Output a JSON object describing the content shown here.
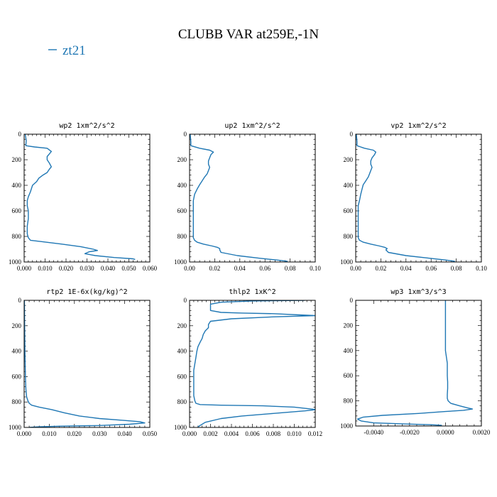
{
  "title": "CLUBB VAR at259E,-1N",
  "legend": {
    "label": "zt21",
    "color": "#1f77b4"
  },
  "chart_data": [
    {
      "type": "line",
      "title": "wp2  1xm^2/s^2",
      "xlim": [
        0,
        0.06
      ],
      "ylim": [
        1000,
        0
      ],
      "xticks": [
        0,
        0.01,
        0.02,
        0.03,
        0.04,
        0.05,
        0.06
      ],
      "xtick_labels": [
        "0.000",
        "0.010",
        "0.020",
        "0.030",
        "0.040",
        "0.050",
        "0.060"
      ],
      "yticks": [
        0,
        200,
        400,
        600,
        800,
        1000
      ],
      "ytick_labels": [
        "0",
        "200",
        "400",
        "600",
        "800",
        "1000"
      ],
      "series": [
        {
          "x": [
            0.0005,
            0.001,
            0.0008,
            0.005,
            0.011,
            0.013,
            0.012,
            0.011,
            0.011,
            0.012,
            0.013,
            0.012,
            0.011,
            0.009,
            0.007,
            0.006,
            0.004,
            0.003,
            0.002,
            0.0015,
            0.0015,
            0.002,
            0.002,
            0.0015,
            0.0015,
            0.002,
            0.003,
            0.008,
            0.018,
            0.027,
            0.033,
            0.035,
            0.031,
            0.029,
            0.034,
            0.043,
            0.052,
            0.053
          ],
          "y": [
            0,
            50,
            90,
            100,
            110,
            135,
            155,
            175,
            200,
            225,
            255,
            275,
            300,
            320,
            345,
            370,
            400,
            450,
            490,
            520,
            560,
            600,
            660,
            720,
            780,
            810,
            830,
            840,
            860,
            880,
            900,
            910,
            920,
            935,
            950,
            965,
            975,
            980
          ]
        }
      ]
    },
    {
      "type": "line",
      "title": "up2  1xm^2/s^2",
      "xlim": [
        0,
        0.1
      ],
      "ylim": [
        1000,
        0
      ],
      "xticks": [
        0,
        0.02,
        0.04,
        0.06,
        0.08,
        0.1
      ],
      "xtick_labels": [
        "0.00",
        "0.02",
        "0.04",
        "0.06",
        "0.08",
        "0.10"
      ],
      "yticks": [
        0,
        200,
        400,
        600,
        800,
        1000
      ],
      "ytick_labels": [
        "0",
        "200",
        "400",
        "600",
        "800",
        "1000"
      ],
      "series": [
        {
          "x": [
            0.0005,
            0.001,
            0.001,
            0.008,
            0.016,
            0.019,
            0.017,
            0.016,
            0.015,
            0.015,
            0.016,
            0.015,
            0.014,
            0.012,
            0.01,
            0.008,
            0.006,
            0.004,
            0.003,
            0.003,
            0.003,
            0.003,
            0.003,
            0.003,
            0.003,
            0.004,
            0.006,
            0.011,
            0.018,
            0.022,
            0.024,
            0.024,
            0.025,
            0.038,
            0.055,
            0.07,
            0.078
          ],
          "y": [
            0,
            60,
            90,
            110,
            125,
            140,
            160,
            185,
            210,
            235,
            260,
            285,
            310,
            335,
            365,
            395,
            430,
            470,
            520,
            560,
            610,
            660,
            720,
            780,
            810,
            830,
            845,
            860,
            875,
            885,
            895,
            905,
            925,
            950,
            970,
            985,
            995
          ]
        }
      ]
    },
    {
      "type": "line",
      "title": "vp2  1xm^2/s^2",
      "xlim": [
        0,
        0.1
      ],
      "ylim": [
        1000,
        0
      ],
      "xticks": [
        0,
        0.02,
        0.04,
        0.06,
        0.08,
        0.1
      ],
      "xtick_labels": [
        "0.00",
        "0.02",
        "0.04",
        "0.06",
        "0.08",
        "0.10"
      ],
      "yticks": [
        0,
        200,
        400,
        600,
        800,
        1000
      ],
      "ytick_labels": [
        "0",
        "200",
        "400",
        "600",
        "800",
        "1000"
      ],
      "series": [
        {
          "x": [
            0.0005,
            0.001,
            0.001,
            0.007,
            0.014,
            0.016,
            0.015,
            0.013,
            0.012,
            0.012,
            0.013,
            0.012,
            0.011,
            0.01,
            0.008,
            0.006,
            0.005,
            0.004,
            0.003,
            0.002,
            0.002,
            0.002,
            0.002,
            0.002,
            0.002,
            0.003,
            0.006,
            0.012,
            0.019,
            0.023,
            0.025,
            0.024,
            0.026,
            0.04,
            0.058,
            0.072,
            0.079
          ],
          "y": [
            0,
            60,
            90,
            110,
            125,
            140,
            160,
            185,
            210,
            235,
            260,
            285,
            310,
            335,
            365,
            395,
            430,
            470,
            520,
            560,
            610,
            660,
            720,
            780,
            810,
            830,
            845,
            860,
            875,
            885,
            895,
            905,
            925,
            950,
            970,
            985,
            995
          ]
        }
      ]
    },
    {
      "type": "line",
      "title": "rtp2  1E-6x(kg/kg)^2",
      "xlim": [
        0,
        0.05
      ],
      "ylim": [
        1000,
        0
      ],
      "xticks": [
        0,
        0.01,
        0.02,
        0.03,
        0.04,
        0.05
      ],
      "xtick_labels": [
        "0.000",
        "0.010",
        "0.020",
        "0.030",
        "0.040",
        "0.050"
      ],
      "yticks": [
        0,
        200,
        400,
        600,
        800,
        1000
      ],
      "ytick_labels": [
        "0",
        "200",
        "400",
        "600",
        "800",
        "1000"
      ],
      "series": [
        {
          "x": [
            0.0001,
            0.0002,
            0.0003,
            0.0005,
            0.0007,
            0.001,
            0.0015,
            0.002,
            0.003,
            0.006,
            0.011,
            0.016,
            0.022,
            0.03,
            0.04,
            0.046,
            0.048,
            0.042,
            0.03,
            0.015,
            0.006,
            0.002
          ],
          "y": [
            0,
            200,
            400,
            600,
            700,
            760,
            790,
            810,
            825,
            840,
            860,
            885,
            910,
            930,
            945,
            955,
            965,
            975,
            985,
            990,
            995,
            1000
          ]
        }
      ]
    },
    {
      "type": "line",
      "title": "thlp2  1xK^2",
      "xlim": [
        0,
        0.012
      ],
      "ylim": [
        1000,
        0
      ],
      "xticks": [
        0,
        0.002,
        0.004,
        0.006,
        0.008,
        0.01,
        0.012
      ],
      "xtick_labels": [
        "0.000",
        "0.002",
        "0.004",
        "0.006",
        "0.008",
        "0.010",
        "0.012"
      ],
      "yticks": [
        0,
        200,
        400,
        600,
        800,
        1000
      ],
      "ytick_labels": [
        "0",
        "200",
        "400",
        "600",
        "800",
        "1000"
      ],
      "series": [
        {
          "x": [
            0.011,
            0.006,
            0.003,
            0.002,
            0.002,
            0.002,
            0.003,
            0.005,
            0.008,
            0.012,
            0.008,
            0.004,
            0.002,
            0.0018,
            0.0018,
            0.0015,
            0.0013,
            0.0012,
            0.001,
            0.0008,
            0.0007,
            0.0006,
            0.0005,
            0.0004,
            0.0004,
            0.0004,
            0.0004,
            0.0004,
            0.0005,
            0.0006,
            0.001,
            0.003,
            0.007,
            0.01,
            0.0121,
            0.011,
            0.008,
            0.005,
            0.003,
            0.0015,
            0.0008
          ],
          "y": [
            0,
            5,
            15,
            30,
            60,
            80,
            95,
            100,
            105,
            120,
            130,
            145,
            165,
            190,
            215,
            240,
            270,
            300,
            330,
            365,
            400,
            450,
            500,
            550,
            600,
            650,
            700,
            750,
            790,
            810,
            820,
            825,
            830,
            840,
            860,
            870,
            890,
            910,
            930,
            960,
            995
          ]
        }
      ]
    },
    {
      "type": "line",
      "title": "wp3  1xm^3/s^3",
      "xlim": [
        -0.005,
        0.002
      ],
      "ylim": [
        1000,
        0
      ],
      "xticks": [
        -0.004,
        -0.002,
        0,
        0.002
      ],
      "xtick_labels": [
        "-0.0040",
        "-0.0020",
        "0.0000",
        "0.0020"
      ],
      "yticks": [
        0,
        200,
        400,
        600,
        800,
        1000
      ],
      "ytick_labels": [
        "0",
        "200",
        "400",
        "600",
        "800",
        "1000"
      ],
      "series": [
        {
          "x": [
            0,
            0,
            0,
            0,
            0,
            0.0001,
            0.0001,
            0.0001,
            0.00012,
            0.00012,
            0.0001,
            0.0001,
            0.00015,
            0.0003,
            0.0008,
            0.0012,
            0.0015,
            0.001,
            0.0,
            -0.0015,
            -0.0035,
            -0.0046,
            -0.0049,
            -0.0047,
            -0.004,
            -0.002,
            -0.0008,
            -0.0002
          ],
          "y": [
            0,
            100,
            200,
            300,
            400,
            500,
            550,
            600,
            650,
            700,
            750,
            780,
            800,
            820,
            840,
            855,
            865,
            875,
            885,
            900,
            915,
            930,
            945,
            960,
            975,
            985,
            990,
            995
          ]
        }
      ]
    }
  ]
}
